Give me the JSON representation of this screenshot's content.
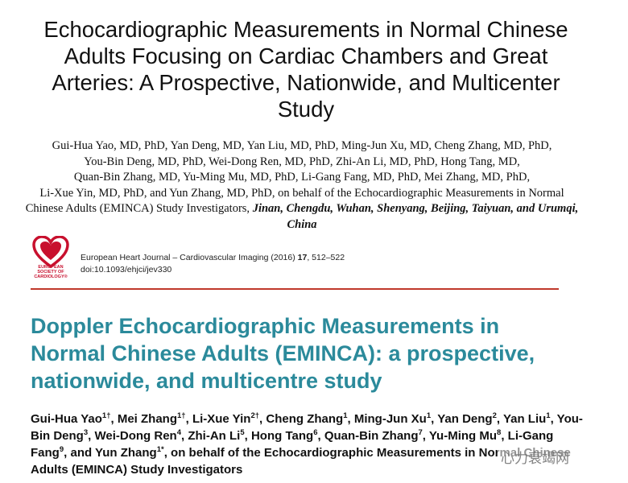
{
  "paper1": {
    "title_lines": [
      "Echocardiographic Measurements in Normal Chinese",
      "Adults Focusing on Cardiac Chambers and Great",
      "Arteries: A Prospective, Nationwide, and Multicenter",
      "Study"
    ],
    "author_lines": [
      "Gui-Hua Yao, MD, PhD, Yan Deng, MD, Yan Liu, MD, PhD, Ming-Jun Xu, MD, Cheng Zhang, MD, PhD,",
      "You-Bin Deng, MD, PhD, Wei-Dong Ren, MD, PhD, Zhi-An Li, MD, PhD, Hong Tang, MD,",
      "Quan-Bin Zhang, MD, Yu-Ming Mu, MD, PhD, Li-Gang Fang, MD, PhD, Mei Zhang, MD, PhD,",
      "Li-Xue Yin, MD, PhD, and Yun Zhang, MD, PhD, on behalf of the Echocardiographic Measurements in Normal"
    ],
    "author_tail": "Chinese Adults (EMINCA) Study Investigators,",
    "locations": "Jinan, Chengdu, Wuhan, Shenyang, Beijing, Taiyuan, and Urumqi, China"
  },
  "journal": {
    "logo_lines": [
      "EUROPEAN",
      "SOCIETY OF",
      "CARDIOLOGY®"
    ],
    "name": "European Heart Journal – Cardiovascular Imaging (2016) ",
    "volume": "17",
    "pages": ", 512–522",
    "doi": "doi:10.1093/ehjci/jev330"
  },
  "paper2": {
    "title_lines": [
      "Doppler Echocardiographic Measurements in",
      "Normal Chinese Adults (EMINCA): a prospective,",
      "nationwide, and multicentre study"
    ],
    "authors": [
      {
        "name": "Gui-Hua Yao",
        "sup": "1†",
        "sep": ", "
      },
      {
        "name": "Mei Zhang",
        "sup": "1†",
        "sep": ", "
      },
      {
        "name": "Li-Xue Yin",
        "sup": "2†",
        "sep": ", "
      },
      {
        "name": "Cheng Zhang",
        "sup": "1",
        "sep": ", "
      },
      {
        "name": "Ming-Jun Xu",
        "sup": "1",
        "sep": ", "
      },
      {
        "name": "Yan Deng",
        "sup": "2",
        "sep": ", "
      },
      {
        "name": "Yan Liu",
        "sup": "1",
        "sep": ", "
      },
      {
        "name": "You-Bin Deng",
        "sup": "3",
        "sep": ", "
      },
      {
        "name": "Wei-Dong Ren",
        "sup": "4",
        "sep": ", "
      },
      {
        "name": "Zhi-An Li",
        "sup": "5",
        "sep": ", "
      },
      {
        "name": "Hong Tang",
        "sup": "6",
        "sep": ", "
      },
      {
        "name": "Quan-Bin Zhang",
        "sup": "7",
        "sep": ", "
      },
      {
        "name": "Yu-Ming Mu",
        "sup": "8",
        "sep": ", "
      },
      {
        "name": "Li-Gang Fang",
        "sup": "9",
        "sep": ", "
      },
      {
        "name": "and Yun Zhang",
        "sup": "1*",
        "sep": ", "
      }
    ],
    "on_behalf": "on behalf of the Echocardiographic Measurements in Normal Chinese Adults (EMINCA) Study Investigators"
  },
  "watermark": "心力衰竭网"
}
